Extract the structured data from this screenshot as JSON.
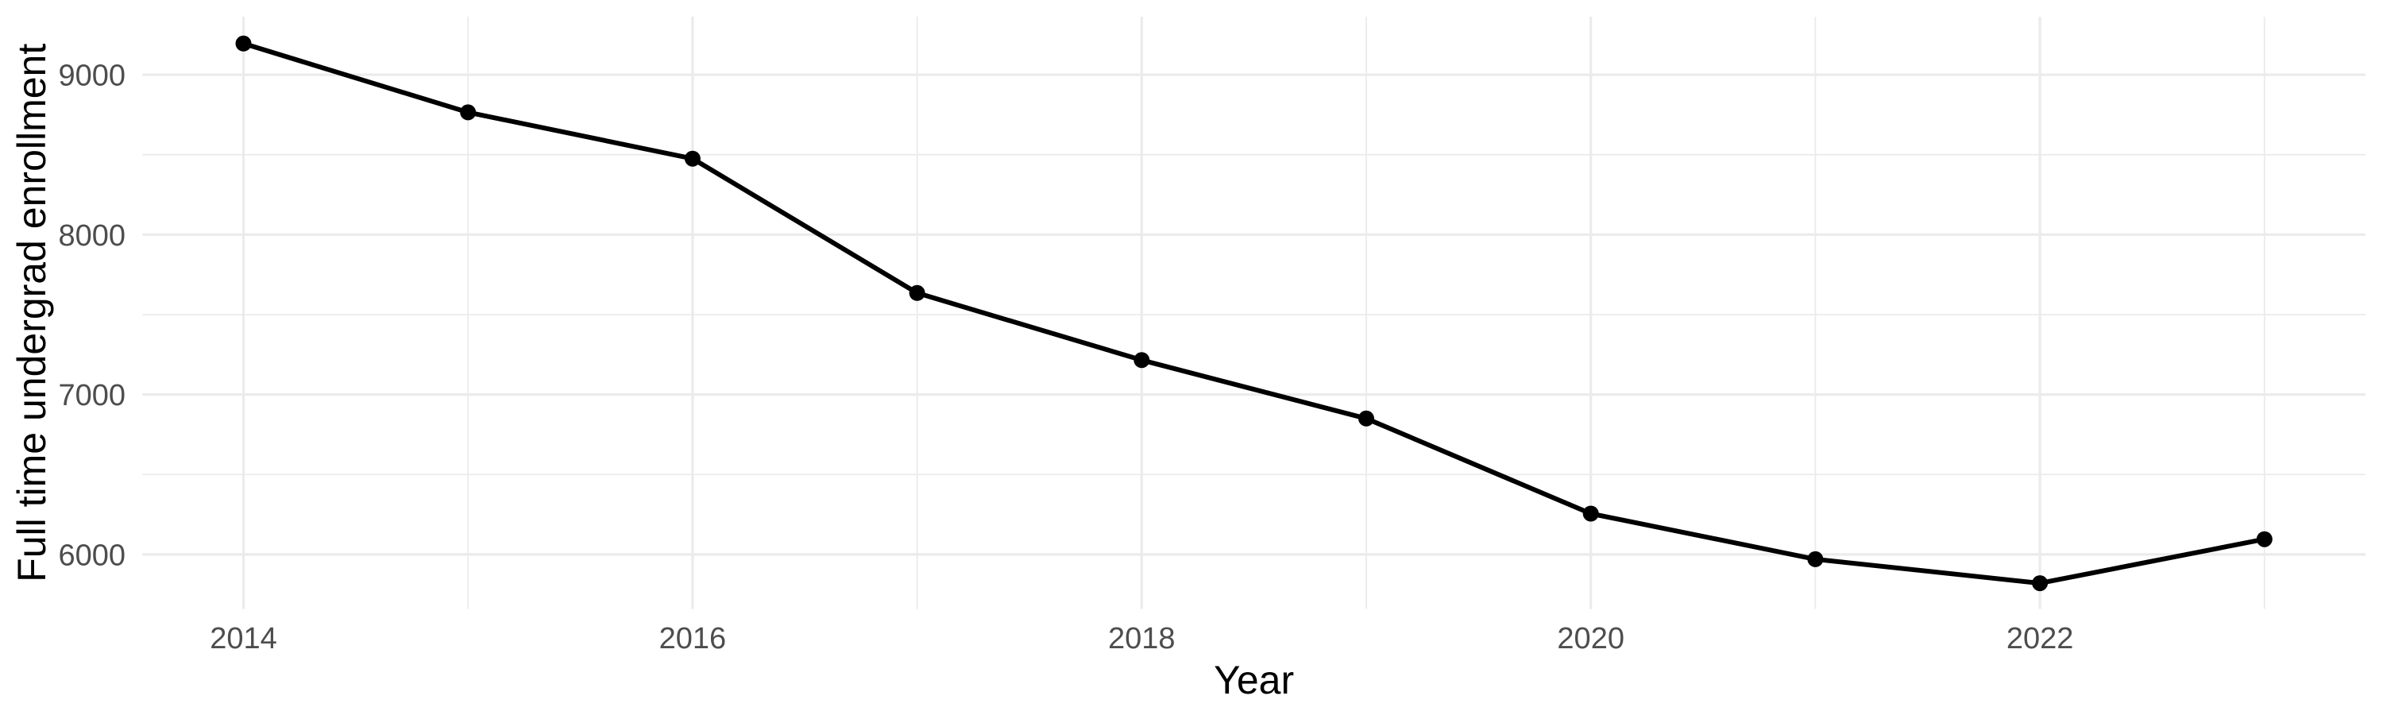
{
  "chart_data": {
    "type": "line",
    "title": "",
    "xlabel": "Year",
    "ylabel": "Full time undergrad enrollment",
    "x": [
      2014,
      2015,
      2016,
      2017,
      2018,
      2019,
      2020,
      2021,
      2022,
      2023
    ],
    "series": [
      {
        "name": "Full time undergrad enrollment",
        "values": [
          9195,
          8765,
          8475,
          7635,
          7215,
          6850,
          6255,
          5970,
          5820,
          6095
        ]
      }
    ],
    "x_ticks_major": [
      2014,
      2016,
      2018,
      2020,
      2022
    ],
    "x_ticks_minor": [
      2015,
      2017,
      2019,
      2021,
      2023
    ],
    "y_ticks_major": [
      6000,
      7000,
      8000,
      9000
    ],
    "y_ticks_minor": [
      6500,
      7500,
      8500
    ],
    "xlim": [
      2013.55,
      2023.45
    ],
    "ylim": [
      5659,
      9363
    ],
    "grid": "on",
    "legend": "none",
    "marker": "filled-circle",
    "colors": {
      "line": "#000000",
      "point": "#000000",
      "grid": "#ebebeb",
      "tick_label": "#4d4d4d",
      "axis_title": "#000000",
      "background": "#ffffff"
    }
  }
}
